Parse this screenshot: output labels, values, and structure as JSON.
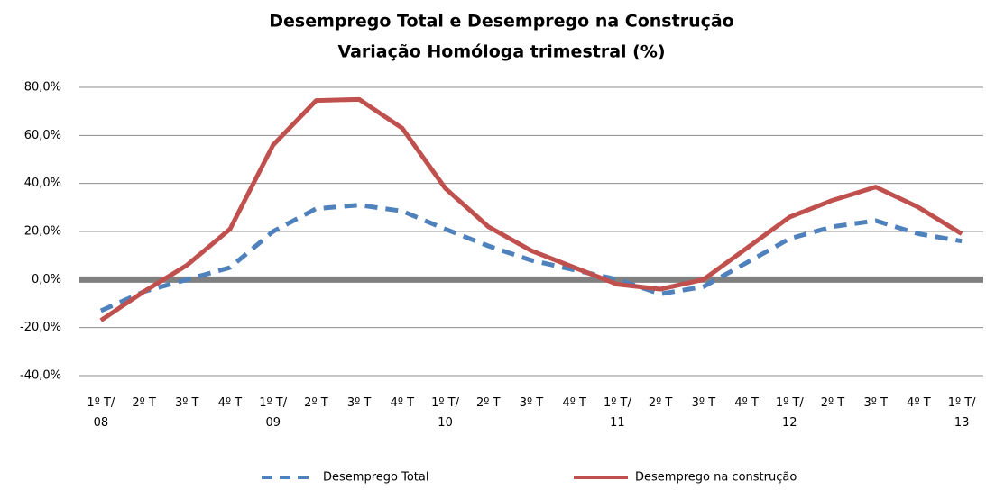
{
  "chart_data": {
    "type": "line",
    "title": "Desemprego Total e Desemprego na Construção",
    "subtitle": "Variação Homóloga trimestral (%)",
    "categories": [
      "1º T/\n08",
      "2º T",
      "3º T",
      "4º T",
      "1º T/\n09",
      "2º T",
      "3º T",
      "4º T",
      "1º T/\n10",
      "2º T",
      "3º T",
      "4º T",
      "1º T/\n11",
      "2º T",
      "3º T",
      "4º T",
      "1º T/\n12",
      "2º T",
      "3º T",
      "4º T",
      "1º T/\n13"
    ],
    "series": [
      {
        "name": "Desemprego Total",
        "color": "#4f81bd",
        "dashed": true,
        "values": [
          -13,
          -5,
          0,
          5,
          20,
          29.5,
          31,
          28.5,
          21,
          14,
          8,
          4,
          0,
          -6,
          -3,
          7,
          17,
          22,
          24.5,
          19,
          16
        ]
      },
      {
        "name": "Desemprego na construção",
        "color": "#c0504d",
        "dashed": false,
        "values": [
          -17,
          -5,
          6,
          21,
          56,
          74.5,
          75,
          63,
          38,
          22,
          12,
          5,
          -2,
          -4,
          0,
          13,
          26,
          33,
          38.5,
          30,
          19
        ]
      }
    ],
    "ylim": [
      -40,
      80
    ],
    "yticks": [
      {
        "value": -40,
        "label": "-40,0%"
      },
      {
        "value": -20,
        "label": "-20,0%"
      },
      {
        "value": 0,
        "label": "0,0%"
      },
      {
        "value": 20,
        "label": "20,0%"
      },
      {
        "value": 40,
        "label": "40,0%"
      },
      {
        "value": 60,
        "label": "60,0%"
      },
      {
        "value": 80,
        "label": "80,0%"
      }
    ],
    "grid": true,
    "legend": "bottom"
  }
}
